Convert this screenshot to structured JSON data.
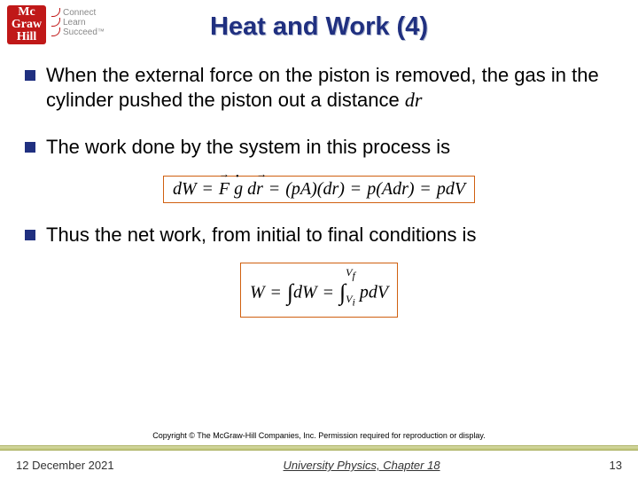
{
  "logo": {
    "top": "Mc",
    "mid": "Graw",
    "bot": "Hill",
    "tag1": "Connect",
    "tag2": "Learn",
    "tag3": "Succeed",
    "tm": "™"
  },
  "title": "Heat and Work (4)",
  "bullets": [
    "When the external force on the piston is removed, the gas in the cylinder pushed the piston out a distance ",
    "The work done by the system in this process is",
    "Thus the net work, from initial to final conditions is"
  ],
  "dr": "dr",
  "copyright": "Copyright © The McGraw-Hill Companies, Inc. Permission required for reproduction or display.",
  "footer": {
    "date": "12 December 2021",
    "center": "University Physics, Chapter 18",
    "page": "13"
  },
  "colors": {
    "title": "#203080",
    "bullet_marker": "#203080",
    "eq_border": "#d06010",
    "logo_bg": "#c01818",
    "footer_bar": "#bfc478"
  }
}
